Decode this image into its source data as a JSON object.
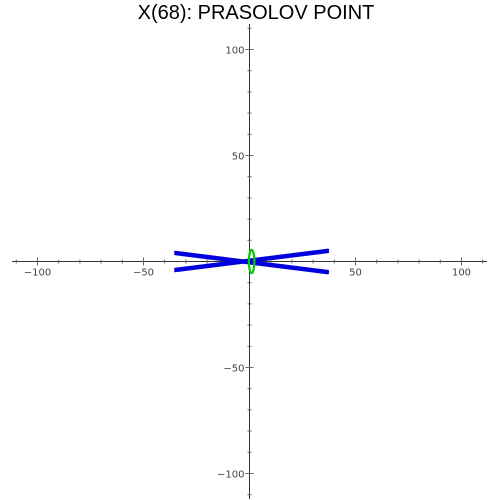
{
  "chart_data": {
    "type": "line",
    "title": "X(68): PRASOLOV POINT",
    "xlabel": "",
    "ylabel": "",
    "xlim": [
      -112,
      112
    ],
    "ylim": [
      -112,
      112
    ],
    "x_ticks": [
      {
        "value": -100,
        "label": "−100"
      },
      {
        "value": -50,
        "label": "−50"
      },
      {
        "value": 50,
        "label": "50"
      },
      {
        "value": 100,
        "label": "100"
      }
    ],
    "y_ticks": [
      {
        "value": 100,
        "label": "100"
      },
      {
        "value": 50,
        "label": "50"
      },
      {
        "value": -50,
        "label": "−50"
      },
      {
        "value": -100,
        "label": "−100"
      }
    ],
    "minor_tick_step": 10,
    "grid": false,
    "series": [
      {
        "color": "#0000dd",
        "segments": [
          {
            "x": [
              -35,
              37
            ],
            "y": [
              4.5,
              -4.5
            ]
          },
          {
            "x": [
              -35,
              37
            ],
            "y": [
              -4.5,
              4.5
            ]
          },
          {
            "x": [
              -35,
              37
            ],
            "y": [
              3.5,
              -5.5
            ]
          },
          {
            "x": [
              -35,
              37
            ],
            "y": [
              -3.5,
              5.5
            ]
          }
        ]
      },
      {
        "color": "#00cc00",
        "ellipse": {
          "cx": 1,
          "cy": 0,
          "rx": 1.3,
          "ry": 5.5
        }
      }
    ]
  }
}
